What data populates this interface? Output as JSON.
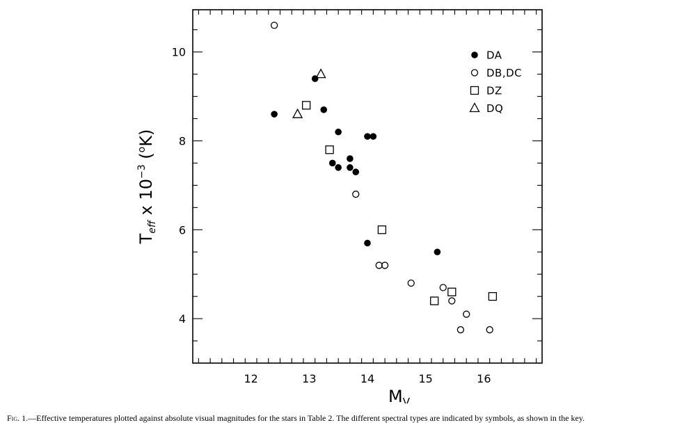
{
  "chart_data": {
    "type": "scatter",
    "x_ticks": [
      "12",
      "13",
      "14",
      "15",
      "16"
    ],
    "y_ticks": [
      "4",
      "6",
      "8",
      "10"
    ],
    "xlim": [
      11,
      17
    ],
    "ylim": [
      3,
      10.95
    ],
    "xlabel_main": "M",
    "xlabel_sub": "V",
    "ylabel_main": "T",
    "ylabel_sub": "eff",
    "ylabel_mid": " x 10",
    "ylabel_exp": "−3",
    "ylabel_unit_open": " (",
    "ylabel_degree": "o",
    "ylabel_unit_close": "K)",
    "legend_position": "top-right",
    "series": [
      {
        "name": "DA",
        "marker": "filled-circle",
        "points": [
          [
            12.4,
            8.6
          ],
          [
            13.1,
            9.4
          ],
          [
            13.25,
            8.7
          ],
          [
            13.5,
            8.2
          ],
          [
            14.0,
            8.1
          ],
          [
            14.1,
            8.1
          ],
          [
            13.7,
            7.6
          ],
          [
            13.4,
            7.5
          ],
          [
            13.5,
            7.4
          ],
          [
            13.7,
            7.4
          ],
          [
            13.8,
            7.3
          ],
          [
            14.0,
            5.7
          ],
          [
            15.2,
            5.5
          ]
        ]
      },
      {
        "name": "DB,DC",
        "marker": "open-circle",
        "points": [
          [
            12.4,
            10.6
          ],
          [
            13.8,
            6.8
          ],
          [
            14.2,
            5.2
          ],
          [
            14.3,
            5.2
          ],
          [
            14.75,
            4.8
          ],
          [
            15.3,
            4.7
          ],
          [
            15.45,
            4.4
          ],
          [
            15.7,
            4.1
          ],
          [
            15.6,
            3.75
          ],
          [
            16.1,
            3.75
          ]
        ]
      },
      {
        "name": "DZ",
        "marker": "open-square",
        "points": [
          [
            12.95,
            8.8
          ],
          [
            13.35,
            7.8
          ],
          [
            14.25,
            6.0
          ],
          [
            15.15,
            4.4
          ],
          [
            15.45,
            4.6
          ],
          [
            16.15,
            4.5
          ]
        ]
      },
      {
        "name": "DQ",
        "marker": "open-triangle",
        "points": [
          [
            12.8,
            8.6
          ],
          [
            13.2,
            9.5
          ]
        ]
      }
    ]
  },
  "caption": {
    "label": "Fig.",
    "text": " 1.—Effective temperatures plotted against absolute visual magnitudes for the stars in Table 2. The different spectral types are indicated by symbols, as shown in the key."
  }
}
